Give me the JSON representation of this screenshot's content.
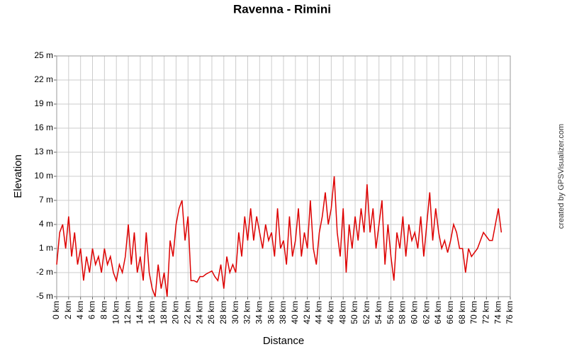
{
  "chart_data": {
    "type": "line",
    "title": "Ravenna - Rimini",
    "x_label": "Distance",
    "y_label": "Elevation",
    "credit": "created by GPSVisualizer.com",
    "xlim": [
      0,
      76
    ],
    "ylim": [
      -5,
      25
    ],
    "grid": true,
    "xticks": [
      {
        "value": 0,
        "label": "0 km"
      },
      {
        "value": 2,
        "label": "2 km"
      },
      {
        "value": 4,
        "label": "4 km"
      },
      {
        "value": 6,
        "label": "6 km"
      },
      {
        "value": 8,
        "label": "8 km"
      },
      {
        "value": 10,
        "label": "10 km"
      },
      {
        "value": 12,
        "label": "12 km"
      },
      {
        "value": 14,
        "label": "14 km"
      },
      {
        "value": 16,
        "label": "16 km"
      },
      {
        "value": 18,
        "label": "18 km"
      },
      {
        "value": 20,
        "label": "20 km"
      },
      {
        "value": 22,
        "label": "22 km"
      },
      {
        "value": 24,
        "label": "24 km"
      },
      {
        "value": 26,
        "label": "26 km"
      },
      {
        "value": 28,
        "label": "28 km"
      },
      {
        "value": 30,
        "label": "30 km"
      },
      {
        "value": 32,
        "label": "32 km"
      },
      {
        "value": 34,
        "label": "34 km"
      },
      {
        "value": 36,
        "label": "36 km"
      },
      {
        "value": 38,
        "label": "38 km"
      },
      {
        "value": 40,
        "label": "40 km"
      },
      {
        "value": 42,
        "label": "42 km"
      },
      {
        "value": 44,
        "label": "44 km"
      },
      {
        "value": 46,
        "label": "46 km"
      },
      {
        "value": 48,
        "label": "48 km"
      },
      {
        "value": 50,
        "label": "50 km"
      },
      {
        "value": 52,
        "label": "52 km"
      },
      {
        "value": 54,
        "label": "54 km"
      },
      {
        "value": 56,
        "label": "56 km"
      },
      {
        "value": 58,
        "label": "58 km"
      },
      {
        "value": 60,
        "label": "60 km"
      },
      {
        "value": 62,
        "label": "62 km"
      },
      {
        "value": 64,
        "label": "64 km"
      },
      {
        "value": 66,
        "label": "66 km"
      },
      {
        "value": 68,
        "label": "68 km"
      },
      {
        "value": 70,
        "label": "70 km"
      },
      {
        "value": 72,
        "label": "72 km"
      },
      {
        "value": 74,
        "label": "74 km"
      },
      {
        "value": 76,
        "label": "76 km"
      }
    ],
    "yticks": [
      {
        "value": -5,
        "label": "-5 m"
      },
      {
        "value": -2,
        "label": "-2 m"
      },
      {
        "value": 1,
        "label": "1 m"
      },
      {
        "value": 4,
        "label": "4 m"
      },
      {
        "value": 7,
        "label": "7 m"
      },
      {
        "value": 10,
        "label": "10 m"
      },
      {
        "value": 13,
        "label": "13 m"
      },
      {
        "value": 16,
        "label": "16 m"
      },
      {
        "value": 19,
        "label": "19 m"
      },
      {
        "value": 22,
        "label": "22 m"
      },
      {
        "value": 25,
        "label": "25 m"
      }
    ],
    "x": [
      0,
      0.5,
      1,
      1.5,
      2,
      2.5,
      3,
      3.5,
      4,
      4.5,
      5,
      5.5,
      6,
      6.5,
      7,
      7.5,
      8,
      8.5,
      9,
      9.5,
      10,
      10.5,
      11,
      11.5,
      12,
      12.5,
      13,
      13.5,
      14,
      14.5,
      15,
      15.5,
      16,
      16.5,
      17,
      17.5,
      18,
      18.5,
      19,
      19.5,
      20,
      20.5,
      21,
      21.5,
      22,
      22.5,
      23,
      23.5,
      24,
      24.5,
      25,
      25.5,
      26,
      26.5,
      27,
      27.5,
      28,
      28.5,
      29,
      29.5,
      30,
      30.5,
      31,
      31.5,
      32,
      32.5,
      33,
      33.5,
      34,
      34.5,
      35,
      35.5,
      36,
      36.5,
      37,
      37.5,
      38,
      38.5,
      39,
      39.5,
      40,
      40.5,
      41,
      41.5,
      42,
      42.5,
      43,
      43.5,
      44,
      44.5,
      45,
      45.5,
      46,
      46.5,
      47,
      47.5,
      48,
      48.5,
      49,
      49.5,
      50,
      50.5,
      51,
      51.5,
      52,
      52.5,
      53,
      53.5,
      54,
      54.5,
      55,
      55.5,
      56,
      56.5,
      57,
      57.5,
      58,
      58.5,
      59,
      59.5,
      60,
      60.5,
      61,
      61.5,
      62,
      62.5,
      63,
      63.5,
      64,
      64.5,
      65,
      65.5,
      66,
      66.5,
      67,
      67.5,
      68,
      68.5,
      69,
      69.5,
      70,
      70.5,
      71,
      71.5,
      72,
      72.5,
      73,
      73.5,
      74,
      74.5
    ],
    "series": [
      {
        "name": "Elevation",
        "color": "#dd0000",
        "values": [
          -1,
          3,
          4,
          1,
          5,
          0,
          3,
          -1,
          1,
          -3,
          0,
          -2,
          1,
          -1,
          0,
          -2,
          1,
          -1,
          0,
          -2,
          -3,
          -1,
          -2,
          0,
          4,
          -1,
          3,
          -2,
          0,
          -3,
          3,
          -2,
          -4,
          -5,
          -1,
          -4,
          -2,
          -5,
          2,
          0,
          4,
          6,
          7,
          2,
          5,
          -3,
          -3,
          -3.2,
          -2.5,
          -2.5,
          -2.2,
          -2,
          -1.8,
          -2.5,
          -3,
          -1,
          -4,
          0,
          -2,
          -1,
          -2,
          3,
          0,
          5,
          2,
          6,
          2,
          5,
          3,
          1,
          4,
          2,
          3,
          0,
          6,
          1,
          2,
          -1,
          5,
          0,
          2,
          6,
          0,
          3,
          1,
          7,
          1,
          -1,
          3,
          5,
          8,
          4,
          6,
          10,
          3,
          0,
          6,
          -2,
          4,
          1,
          5,
          2,
          6,
          3,
          9,
          3,
          6,
          1,
          4,
          7,
          -1,
          4,
          0,
          -3,
          3,
          1,
          5,
          0,
          4,
          2,
          3,
          1,
          5,
          0,
          4,
          8,
          2,
          6,
          3,
          1,
          2,
          0.5,
          2,
          4,
          3,
          1,
          1,
          -2,
          1,
          0,
          0.5,
          1,
          2,
          3,
          2.5,
          2,
          2,
          4,
          6,
          3
        ]
      }
    ]
  }
}
